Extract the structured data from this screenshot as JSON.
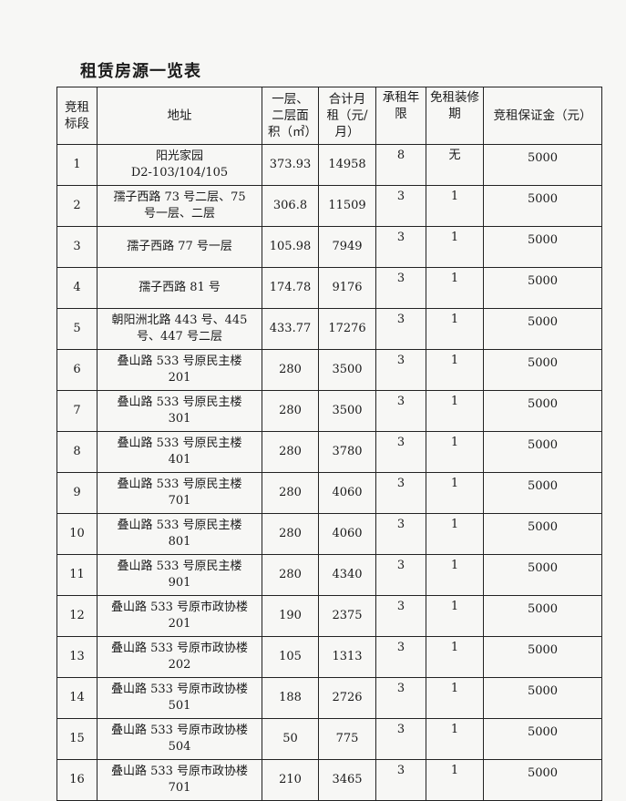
{
  "title": "租赁房源一览表",
  "headers": [
    "竞租标段",
    "地址",
    "一层、二层面积（㎡）",
    "合计月租（元/月）",
    "承租年限",
    "免租装修期",
    "竞租保证金（元）"
  ],
  "rows": [
    {
      "no": "1",
      "addr": [
        "阳光家园",
        "D2-103/104/105"
      ],
      "area": "373.93",
      "rent": "14958",
      "years": "8",
      "free": "无",
      "deposit": "5000"
    },
    {
      "no": "2",
      "addr": [
        "孺子西路 73 号二层、75",
        "号一层、二层"
      ],
      "area": "306.8",
      "rent": "11509",
      "years": "3",
      "free": "1",
      "deposit": "5000"
    },
    {
      "no": "3",
      "addr": [
        "孺子西路 77 号一层"
      ],
      "area": "105.98",
      "rent": "7949",
      "years": "3",
      "free": "1",
      "deposit": "5000"
    },
    {
      "no": "4",
      "addr": [
        "孺子西路 81 号"
      ],
      "area": "174.78",
      "rent": "9176",
      "years": "3",
      "free": "1",
      "deposit": "5000"
    },
    {
      "no": "5",
      "addr": [
        "朝阳洲北路 443 号、445",
        "号、447 号二层"
      ],
      "area": "433.77",
      "rent": "17276",
      "years": "3",
      "free": "1",
      "deposit": "5000"
    },
    {
      "no": "6",
      "addr": [
        "叠山路 533 号原民主楼",
        "201"
      ],
      "area": "280",
      "rent": "3500",
      "years": "3",
      "free": "1",
      "deposit": "5000"
    },
    {
      "no": "7",
      "addr": [
        "叠山路 533 号原民主楼",
        "301"
      ],
      "area": "280",
      "rent": "3500",
      "years": "3",
      "free": "1",
      "deposit": "5000"
    },
    {
      "no": "8",
      "addr": [
        "叠山路 533 号原民主楼",
        "401"
      ],
      "area": "280",
      "rent": "3780",
      "years": "3",
      "free": "1",
      "deposit": "5000"
    },
    {
      "no": "9",
      "addr": [
        "叠山路 533 号原民主楼",
        "701"
      ],
      "area": "280",
      "rent": "4060",
      "years": "3",
      "free": "1",
      "deposit": "5000"
    },
    {
      "no": "10",
      "addr": [
        "叠山路 533 号原民主楼",
        "801"
      ],
      "area": "280",
      "rent": "4060",
      "years": "3",
      "free": "1",
      "deposit": "5000"
    },
    {
      "no": "11",
      "addr": [
        "叠山路 533 号原民主楼",
        "901"
      ],
      "area": "280",
      "rent": "4340",
      "years": "3",
      "free": "1",
      "deposit": "5000"
    },
    {
      "no": "12",
      "addr": [
        "叠山路 533 号原市政协楼",
        "201"
      ],
      "area": "190",
      "rent": "2375",
      "years": "3",
      "free": "1",
      "deposit": "5000"
    },
    {
      "no": "13",
      "addr": [
        "叠山路 533 号原市政协楼",
        "202"
      ],
      "area": "105",
      "rent": "1313",
      "years": "3",
      "free": "1",
      "deposit": "5000"
    },
    {
      "no": "14",
      "addr": [
        "叠山路 533 号原市政协楼",
        "501"
      ],
      "area": "188",
      "rent": "2726",
      "years": "3",
      "free": "1",
      "deposit": "5000"
    },
    {
      "no": "15",
      "addr": [
        "叠山路 533 号原市政协楼",
        "504"
      ],
      "area": "50",
      "rent": "775",
      "years": "3",
      "free": "1",
      "deposit": "5000"
    },
    {
      "no": "16",
      "addr": [
        "叠山路 533 号原市政协楼",
        "701"
      ],
      "area": "210",
      "rent": "3465",
      "years": "3",
      "free": "1",
      "deposit": "5000"
    }
  ]
}
